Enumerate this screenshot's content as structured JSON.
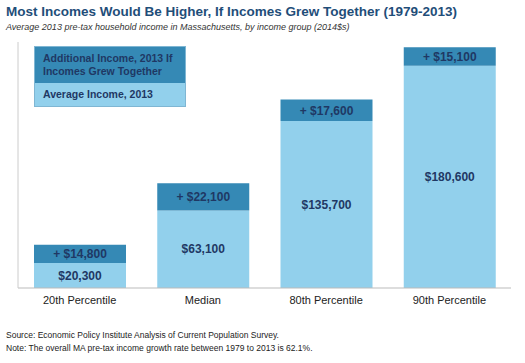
{
  "chart_data": {
    "type": "bar",
    "title": "Most Incomes Would Be Higher, If Incomes Grew Together (1979-2013)",
    "subtitle": "Average 2013 pre-tax household income in Massachusetts, by income group (2014$s)",
    "categories": [
      "20th Percentile",
      "Median",
      "80th Percentile",
      "90th Percentile"
    ],
    "series": [
      {
        "name": "Average Income, 2013",
        "color": "#92d0ec",
        "values": [
          20300,
          63100,
          135700,
          180600
        ],
        "value_labels": [
          "$20,300",
          "$63,100",
          "$135,700",
          "$180,600"
        ]
      },
      {
        "name": "Additional Income, 2013 If Incomes Grew Together",
        "color": "#3589b5",
        "values": [
          14800,
          22100,
          17600,
          15100
        ],
        "value_labels": [
          "+ $14,800",
          "+ $22,100",
          "+ $17,600",
          "+ $15,100"
        ]
      }
    ],
    "stacked": true,
    "data_labels": true,
    "legend": "upper left",
    "ylim": [
      0,
      200000
    ],
    "tick_labels": "x",
    "grid": false,
    "source": "Source: Economic Policy Institute Analysis of Current Population Survey.",
    "note": "Note: The overall MA pre-tax income growth rate between 1979 to 2013 is 62.1%."
  }
}
